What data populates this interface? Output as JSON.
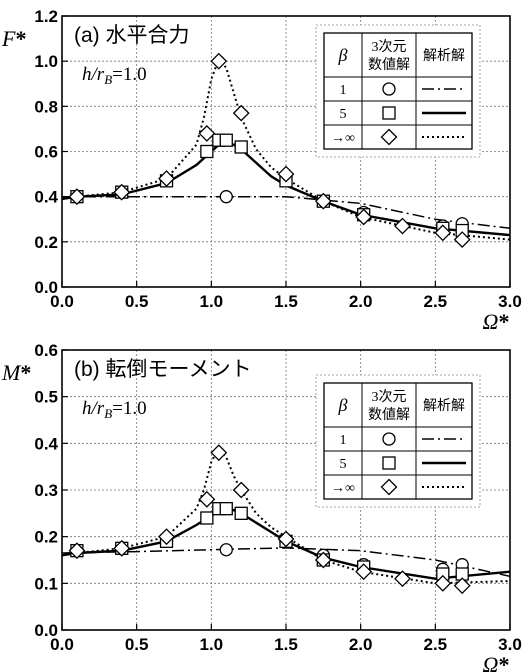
{
  "chart_data": [
    {
      "type": "line",
      "panel_label": "(a) 水平合力",
      "ylabel": "F*",
      "xlabel": "Ω*",
      "annotation": "h/r_B=1.0",
      "xlim": [
        0.0,
        3.0
      ],
      "ylim": [
        0.0,
        1.2
      ],
      "x_ticks": [
        0.0,
        0.5,
        1.0,
        1.5,
        2.0,
        2.5,
        3.0
      ],
      "y_ticks": [
        0.0,
        0.2,
        0.4,
        0.6,
        0.8,
        1.0,
        1.2
      ],
      "grid": true,
      "legend": {
        "placement": "top-right",
        "header": [
          "β",
          "3次元\n数値解",
          "解析解"
        ],
        "rows": [
          {
            "beta": "1",
            "marker": "circle",
            "line": "dash-dot"
          },
          {
            "beta": "5",
            "marker": "square",
            "line": "solid"
          },
          {
            "beta": "→∞",
            "marker": "diamond",
            "line": "dotted"
          }
        ]
      },
      "series": [
        {
          "beta": "1",
          "kind": "analytical",
          "style": "dash-dot",
          "x": [
            0.0,
            0.5,
            1.0,
            1.5,
            2.0,
            2.5,
            3.0
          ],
          "y": [
            0.4,
            0.4,
            0.4,
            0.4,
            0.37,
            0.3,
            0.26
          ]
        },
        {
          "beta": "5",
          "kind": "analytical",
          "style": "solid",
          "x": [
            0.0,
            0.1,
            0.4,
            0.7,
            0.9,
            1.0,
            1.05,
            1.1,
            1.15,
            1.2,
            1.3,
            1.4,
            1.5,
            1.75,
            2.0,
            2.5,
            3.0
          ],
          "y": [
            0.39,
            0.4,
            0.41,
            0.46,
            0.54,
            0.6,
            0.63,
            0.635,
            0.63,
            0.61,
            0.55,
            0.49,
            0.45,
            0.38,
            0.32,
            0.26,
            0.23
          ]
        },
        {
          "beta": "→∞",
          "kind": "analytical",
          "style": "dotted",
          "x": [
            0.0,
            0.1,
            0.4,
            0.7,
            0.9,
            0.95,
            1.0,
            1.05,
            1.1,
            1.15,
            1.2,
            1.3,
            1.4,
            1.5,
            1.75,
            2.0,
            2.5,
            3.0
          ],
          "y": [
            0.39,
            0.4,
            0.42,
            0.48,
            0.63,
            0.75,
            0.92,
            1.01,
            0.97,
            0.86,
            0.75,
            0.61,
            0.53,
            0.48,
            0.38,
            0.31,
            0.24,
            0.21
          ]
        },
        {
          "beta": "1",
          "kind": "3D numerical",
          "marker": "circle",
          "x": [
            0.1,
            0.4,
            0.7,
            1.1,
            1.5,
            1.75,
            2.02,
            2.55,
            2.68
          ],
          "y": [
            0.4,
            0.42,
            0.47,
            0.4,
            0.49,
            0.38,
            0.33,
            0.27,
            0.28
          ]
        },
        {
          "beta": "5",
          "kind": "3D numerical",
          "marker": "square",
          "x": [
            0.1,
            0.4,
            0.7,
            0.97,
            1.05,
            1.1,
            1.2,
            1.5,
            1.75,
            2.02,
            2.55,
            2.68
          ],
          "y": [
            0.4,
            0.42,
            0.47,
            0.6,
            0.65,
            0.65,
            0.62,
            0.47,
            0.38,
            0.32,
            0.26,
            0.25
          ]
        },
        {
          "beta": "→∞",
          "kind": "3D numerical",
          "marker": "diamond",
          "x": [
            0.1,
            0.4,
            0.7,
            0.97,
            1.05,
            1.2,
            1.5,
            1.75,
            2.02,
            2.28,
            2.55,
            2.68
          ],
          "y": [
            0.4,
            0.42,
            0.48,
            0.68,
            1.0,
            0.77,
            0.5,
            0.38,
            0.31,
            0.27,
            0.24,
            0.21
          ]
        }
      ]
    },
    {
      "type": "line",
      "panel_label": "(b) 転倒モーメント",
      "ylabel": "M*",
      "xlabel": "Ω*",
      "annotation": "h/r_B=1.0",
      "xlim": [
        0.0,
        3.0
      ],
      "ylim": [
        0.0,
        0.6
      ],
      "x_ticks": [
        0.0,
        0.5,
        1.0,
        1.5,
        2.0,
        2.5,
        3.0
      ],
      "y_ticks": [
        0.0,
        0.1,
        0.2,
        0.3,
        0.4,
        0.5,
        0.6
      ],
      "grid": true,
      "legend": {
        "placement": "top-right",
        "header": [
          "β",
          "3次元\n数値解",
          "解析解"
        ],
        "rows": [
          {
            "beta": "1",
            "marker": "circle",
            "line": "dash-dot"
          },
          {
            "beta": "5",
            "marker": "square",
            "line": "solid"
          },
          {
            "beta": "→∞",
            "marker": "diamond",
            "line": "dotted"
          }
        ]
      },
      "series": [
        {
          "beta": "1",
          "kind": "analytical",
          "style": "dash-dot",
          "x": [
            0.0,
            0.5,
            1.0,
            1.5,
            2.0,
            2.5,
            3.0
          ],
          "y": [
            0.165,
            0.168,
            0.172,
            0.176,
            0.17,
            0.15,
            0.115
          ]
        },
        {
          "beta": "5",
          "kind": "analytical",
          "style": "solid",
          "x": [
            0.0,
            0.1,
            0.4,
            0.7,
            0.9,
            1.0,
            1.05,
            1.1,
            1.15,
            1.2,
            1.3,
            1.4,
            1.5,
            1.75,
            2.0,
            2.5,
            3.0
          ],
          "y": [
            0.16,
            0.165,
            0.17,
            0.19,
            0.225,
            0.245,
            0.255,
            0.258,
            0.257,
            0.25,
            0.23,
            0.21,
            0.19,
            0.155,
            0.135,
            0.11,
            0.125
          ]
        },
        {
          "beta": "→∞",
          "kind": "analytical",
          "style": "dotted",
          "x": [
            0.0,
            0.1,
            0.4,
            0.7,
            0.9,
            0.95,
            1.0,
            1.05,
            1.1,
            1.15,
            1.2,
            1.3,
            1.4,
            1.5,
            1.75,
            2.0,
            2.5,
            3.0
          ],
          "y": [
            0.16,
            0.165,
            0.175,
            0.2,
            0.26,
            0.3,
            0.36,
            0.39,
            0.37,
            0.33,
            0.3,
            0.25,
            0.22,
            0.2,
            0.15,
            0.125,
            0.1,
            0.105
          ]
        },
        {
          "beta": "1",
          "kind": "3D numerical",
          "marker": "circle",
          "x": [
            0.1,
            0.4,
            0.7,
            1.1,
            1.5,
            1.75,
            2.02,
            2.55,
            2.68
          ],
          "y": [
            0.17,
            0.175,
            0.19,
            0.172,
            0.19,
            0.16,
            0.14,
            0.13,
            0.14
          ]
        },
        {
          "beta": "5",
          "kind": "3D numerical",
          "marker": "square",
          "x": [
            0.1,
            0.4,
            0.7,
            0.97,
            1.05,
            1.1,
            1.2,
            1.5,
            1.75,
            2.02,
            2.55,
            2.68
          ],
          "y": [
            0.17,
            0.175,
            0.19,
            0.24,
            0.26,
            0.26,
            0.25,
            0.19,
            0.15,
            0.135,
            0.12,
            0.12
          ]
        },
        {
          "beta": "→∞",
          "kind": "3D numerical",
          "marker": "diamond",
          "x": [
            0.1,
            0.4,
            0.7,
            0.97,
            1.05,
            1.2,
            1.5,
            1.75,
            2.02,
            2.28,
            2.55,
            2.68
          ],
          "y": [
            0.17,
            0.175,
            0.2,
            0.28,
            0.38,
            0.3,
            0.195,
            0.15,
            0.125,
            0.11,
            0.1,
            0.095
          ]
        }
      ]
    }
  ]
}
